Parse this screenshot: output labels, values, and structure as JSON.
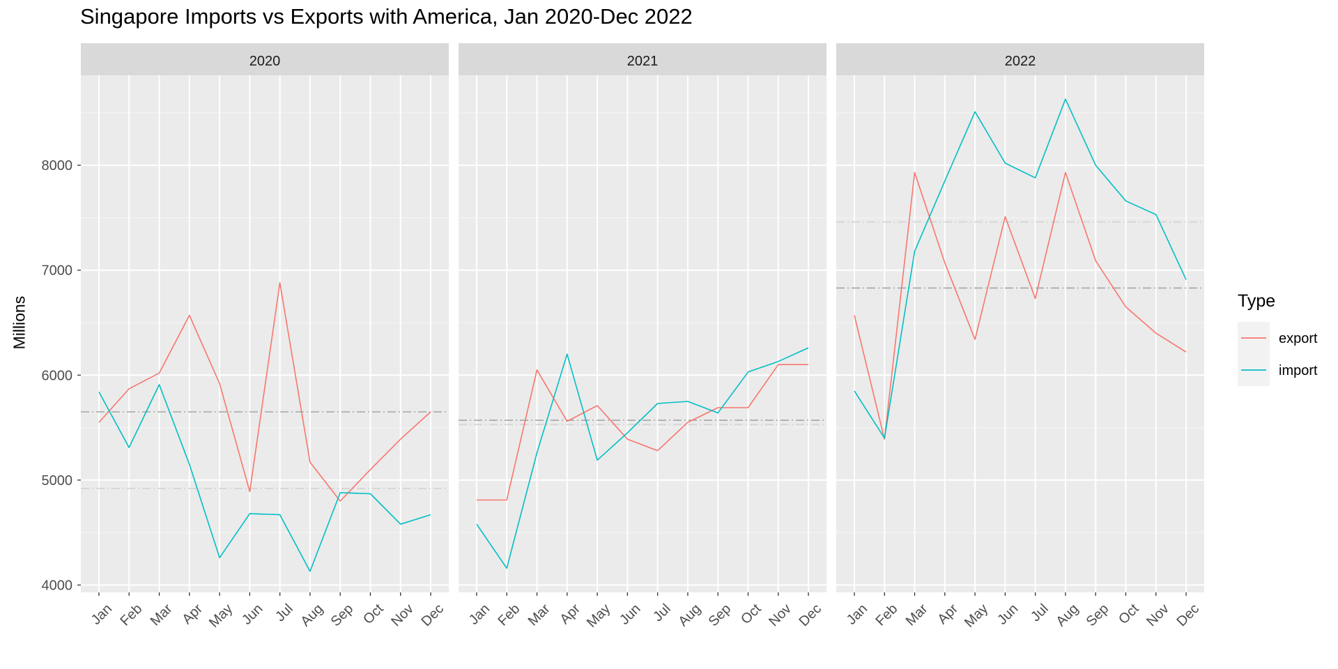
{
  "chart_data": {
    "type": "line",
    "title": "Singapore Imports vs Exports with America, Jan 2020-Dec 2022",
    "xlabel": "",
    "ylabel": "Millions",
    "ylim": [
      3950,
      9000
    ],
    "yticks": [
      4000,
      5000,
      6000,
      7000,
      8000
    ],
    "categories": [
      "Jan",
      "Feb",
      "Mar",
      "Apr",
      "May",
      "Jun",
      "Jul",
      "Aug",
      "Sep",
      "Oct",
      "Nov",
      "Dec"
    ],
    "legend": {
      "title": "Type",
      "placement": "right"
    },
    "grid": true,
    "facets": [
      {
        "label": "2020",
        "series": [
          {
            "name": "export",
            "values": [
              5550,
              5870,
              6020,
              6570,
              5920,
              4890,
              6880,
              5170,
              4800,
              5100,
              5390,
              5650
            ]
          },
          {
            "name": "import",
            "values": [
              5840,
              5310,
              5910,
              5150,
              4260,
              4680,
              4670,
              4130,
              4880,
              4870,
              4580,
              4670
            ]
          }
        ],
        "reference_lines": [
          {
            "series": "export",
            "mean": 5650
          },
          {
            "series": "import",
            "mean": 4920
          }
        ]
      },
      {
        "label": "2021",
        "series": [
          {
            "name": "export",
            "values": [
              4810,
              4810,
              6050,
              5560,
              5710,
              5390,
              5280,
              5550,
              5690,
              5690,
              6100,
              6100
            ]
          },
          {
            "name": "import",
            "values": [
              4580,
              4160,
              5260,
              6200,
              5190,
              5450,
              5730,
              5750,
              5640,
              6030,
              6130,
              6260
            ]
          }
        ],
        "reference_lines": [
          {
            "series": "export",
            "mean": 5570
          },
          {
            "series": "import",
            "mean": 5530
          }
        ]
      },
      {
        "label": "2022",
        "series": [
          {
            "name": "export",
            "values": [
              6570,
              5390,
              7930,
              7070,
              6340,
              7510,
              6730,
              7930,
              7090,
              6650,
              6400,
              6220
            ]
          },
          {
            "name": "import",
            "values": [
              5850,
              5400,
              7180,
              7850,
              8510,
              8020,
              7880,
              8630,
              8000,
              7660,
              7530,
              6910
            ]
          }
        ],
        "reference_lines": [
          {
            "series": "export",
            "mean": 6830
          },
          {
            "series": "import",
            "mean": 7460
          }
        ]
      }
    ]
  },
  "colors": {
    "export": "#F8766D",
    "import": "#00BFC4",
    "panel_bg": "#EBEBEB",
    "strip_bg": "#D9D9D9",
    "grid_major": "#FFFFFF",
    "ref_dark": "#A6A6A6",
    "ref_light": "#D3D3D3"
  }
}
